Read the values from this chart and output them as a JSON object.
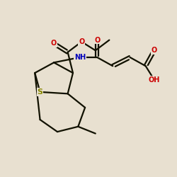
{
  "background_color": "#e8e0d0",
  "bond_color": "#111100",
  "atom_colors": {
    "O": "#cc0000",
    "N": "#0000bb",
    "S": "#888800",
    "C": "#111100"
  },
  "figsize": [
    2.5,
    2.5
  ],
  "dpi": 100,
  "line_width": 1.6,
  "font_size": 7.0
}
